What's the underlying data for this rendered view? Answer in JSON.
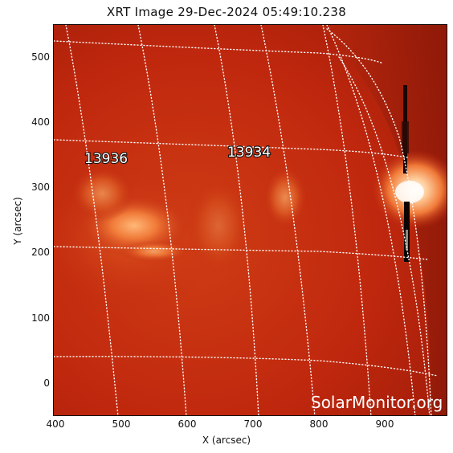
{
  "title": "XRT Image 29-Dec-2024 05:49:10.238",
  "axes": {
    "x_label": "X (arcsec)",
    "y_label": "Y (arcsec)",
    "x_ticks": [
      "400",
      "500",
      "600",
      "700",
      "800",
      "900"
    ],
    "y_ticks": [
      "0",
      "100",
      "200",
      "300",
      "400",
      "500"
    ]
  },
  "regions": [
    {
      "label": "13936"
    },
    {
      "label": "13934"
    }
  ],
  "watermark": "SolarMonitor.org",
  "colors": {
    "disk_base": "#c0280e",
    "disk_dark": "#7a1206",
    "bright": "#fff0d8",
    "grid": "#ffffff"
  }
}
